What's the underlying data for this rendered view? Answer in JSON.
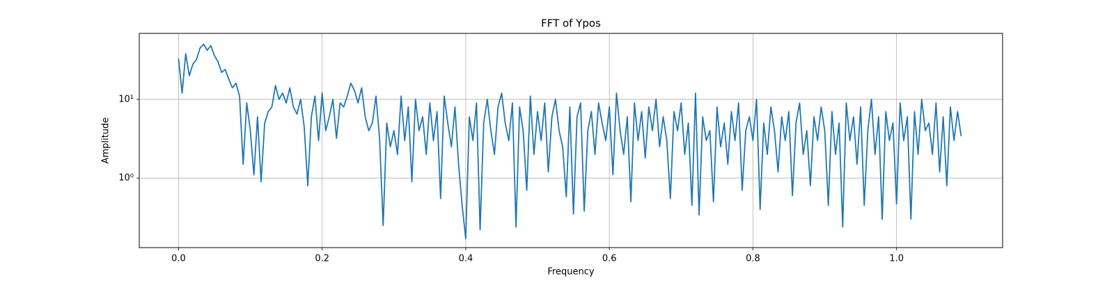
{
  "chart_data": {
    "type": "line",
    "title": "FFT of Ypos",
    "x_label": "Frequency",
    "y_label": "Amplitude",
    "color": "#1f77b4",
    "grid": true,
    "y_scale": "log",
    "xlim": [
      -0.0547,
      1.1477
    ],
    "ylim": [
      0.131,
      68.8
    ],
    "xticks": [
      {
        "value": 0,
        "label": "0.0"
      },
      0.2,
      0.4,
      0.6,
      0.8,
      {
        "value": 1,
        "label": "1.0"
      }
    ],
    "yticks": [
      {
        "value": 1,
        "label": "10⁰"
      },
      {
        "value": 10,
        "label": "10¹"
      }
    ],
    "x": [
      0,
      0.005,
      0.01,
      0.015,
      0.02,
      0.025,
      0.03,
      0.035,
      0.04,
      0.045,
      0.05,
      0.055,
      0.06,
      0.065,
      0.07,
      0.075,
      0.08,
      0.085,
      0.09,
      0.095,
      0.1,
      0.105,
      0.11,
      0.115,
      0.12,
      0.125,
      0.13,
      0.135,
      0.14,
      0.145,
      0.15,
      0.155,
      0.16,
      0.165,
      0.17,
      0.175,
      0.18,
      0.185,
      0.19,
      0.195,
      0.2,
      0.205,
      0.21,
      0.215,
      0.22,
      0.225,
      0.23,
      0.235,
      0.24,
      0.245,
      0.25,
      0.255,
      0.26,
      0.265,
      0.27,
      0.275,
      0.28,
      0.285,
      0.29,
      0.295,
      0.3,
      0.305,
      0.31,
      0.315,
      0.32,
      0.325,
      0.33,
      0.335,
      0.34,
      0.345,
      0.35,
      0.355,
      0.36,
      0.365,
      0.37,
      0.375,
      0.38,
      0.385,
      0.39,
      0.395,
      0.4,
      0.405,
      0.41,
      0.415,
      0.42,
      0.425,
      0.43,
      0.435,
      0.44,
      0.445,
      0.45,
      0.455,
      0.46,
      0.465,
      0.47,
      0.475,
      0.48,
      0.485,
      0.49,
      0.495,
      0.5,
      0.505,
      0.51,
      0.515,
      0.52,
      0.525,
      0.53,
      0.535,
      0.54,
      0.545,
      0.55,
      0.555,
      0.56,
      0.565,
      0.57,
      0.575,
      0.58,
      0.585,
      0.59,
      0.595,
      0.6,
      0.605,
      0.61,
      0.615,
      0.62,
      0.625,
      0.63,
      0.635,
      0.64,
      0.645,
      0.65,
      0.655,
      0.66,
      0.665,
      0.67,
      0.675,
      0.68,
      0.685,
      0.69,
      0.695,
      0.7,
      0.705,
      0.71,
      0.715,
      0.72,
      0.725,
      0.73,
      0.735,
      0.74,
      0.745,
      0.75,
      0.755,
      0.76,
      0.765,
      0.77,
      0.775,
      0.78,
      0.785,
      0.79,
      0.795,
      0.8,
      0.805,
      0.81,
      0.815,
      0.82,
      0.825,
      0.83,
      0.835,
      0.84,
      0.845,
      0.85,
      0.855,
      0.86,
      0.865,
      0.87,
      0.875,
      0.88,
      0.885,
      0.89,
      0.895,
      0.9,
      0.905,
      0.91,
      0.915,
      0.92,
      0.925,
      0.93,
      0.935,
      0.94,
      0.945,
      0.95,
      0.955,
      0.96,
      0.965,
      0.97,
      0.975,
      0.98,
      0.985,
      0.99,
      0.995,
      1,
      1.005,
      1.01,
      1.015,
      1.02,
      1.025,
      1.03,
      1.035,
      1.04,
      1.045,
      1.05,
      1.055,
      1.06,
      1.065,
      1.07,
      1.075,
      1.08,
      1.085,
      1.09
    ],
    "values": [
      33,
      12,
      38,
      20,
      28,
      32,
      45,
      50,
      42,
      48,
      36,
      30,
      22,
      24,
      18,
      14,
      16,
      11,
      1.5,
      9,
      4,
      1.1,
      6,
      0.9,
      5,
      7,
      8,
      15,
      10,
      12,
      9,
      14,
      8,
      6.5,
      10,
      4.5,
      0.8,
      6,
      11,
      3,
      12,
      4,
      6,
      10,
      3.2,
      9,
      8,
      11,
      16,
      13,
      9,
      14,
      6,
      4,
      5,
      11,
      3.2,
      0.25,
      5,
      2.5,
      4,
      2,
      11,
      3,
      8,
      0.9,
      10,
      4,
      6,
      2,
      9,
      3,
      7,
      0.55,
      11,
      5,
      2.5,
      8,
      1.5,
      0.45,
      0.17,
      6,
      3,
      9,
      0.22,
      5,
      10,
      4,
      2,
      8,
      12,
      5,
      3,
      9,
      0.24,
      8,
      4,
      0.7,
      11,
      2,
      7,
      3,
      9,
      1.2,
      6,
      10,
      4,
      2.5,
      0.58,
      8,
      0.35,
      6,
      9,
      0.38,
      4,
      7,
      2,
      9,
      5,
      3,
      8,
      1.1,
      12,
      4,
      2,
      6,
      0.5,
      9,
      3,
      7,
      1.8,
      8,
      4,
      10,
      2.5,
      6,
      3,
      0.55,
      7,
      4,
      9,
      2,
      5,
      0.45,
      12,
      0.34,
      6,
      3,
      4,
      0.5,
      8,
      2.5,
      5,
      1.5,
      7,
      3,
      9,
      0.7,
      4,
      6,
      3,
      10,
      0.4,
      5,
      2,
      8,
      4,
      1.2,
      6,
      3,
      7,
      0.6,
      5,
      9,
      2,
      4,
      0.8,
      6,
      3,
      8,
      4,
      0.45,
      7,
      2,
      5,
      0.24,
      9,
      3,
      6,
      1.5,
      8,
      0.45,
      4,
      10,
      2,
      6,
      0.3,
      7,
      3,
      5,
      0.47,
      9,
      3,
      6,
      0.3,
      7,
      2,
      10,
      4,
      5,
      2,
      9,
      1.2,
      6,
      0.8,
      8,
      3,
      7,
      3.4
    ]
  }
}
